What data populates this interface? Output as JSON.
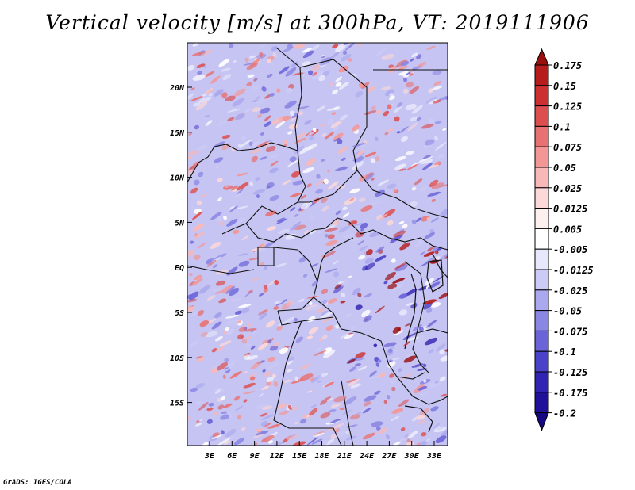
{
  "title": "Vertical velocity [m/s] at 300hPa, VT: 2019111906",
  "footer": "GrADS: IGES/COLA",
  "map": {
    "lat_ticks": [
      "20N",
      "15N",
      "10N",
      "5N",
      "EQ",
      "5S",
      "10S",
      "15S"
    ],
    "lon_ticks": [
      "3E",
      "6E",
      "9E",
      "12E",
      "15E",
      "18E",
      "21E",
      "24E",
      "27E",
      "30E",
      "33E"
    ]
  },
  "colorbar": {
    "labels": [
      "0.175",
      "0.15",
      "0.125",
      "0.1",
      "0.075",
      "0.05",
      "0.025",
      "0.0125",
      "0.005",
      "-0.005",
      "-0.0125",
      "-0.025",
      "-0.05",
      "-0.075",
      "-0.1",
      "-0.125",
      "-0.175",
      "-0.2"
    ],
    "colors": [
      "#9b0f0f",
      "#b71c1c",
      "#cc3030",
      "#dd4e4e",
      "#e87272",
      "#f29696",
      "#f8b8b8",
      "#fcd8d8",
      "#fff0f0",
      "#ffffff",
      "#e8e8fc",
      "#cccaf6",
      "#aaa8ee",
      "#8a86e4",
      "#6a64d8",
      "#4a42c8",
      "#3224b2",
      "#20109a",
      "#160882"
    ]
  }
}
